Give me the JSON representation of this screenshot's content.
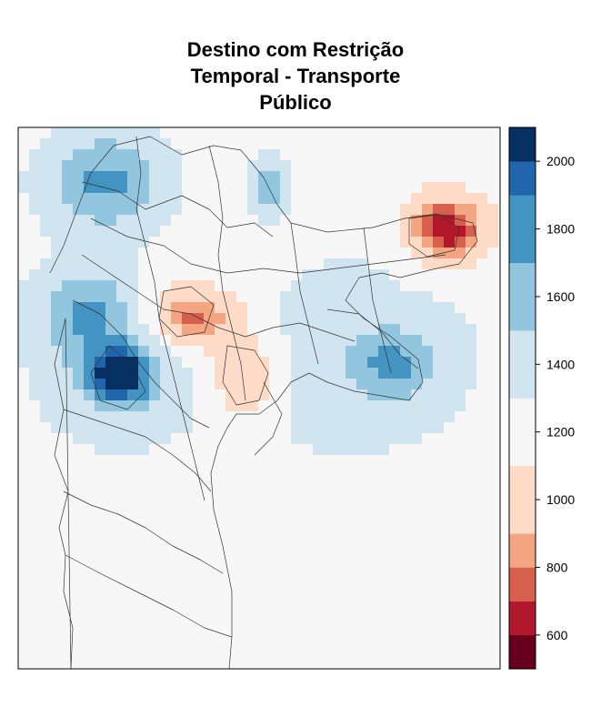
{
  "title_lines": [
    "Destino com Restrição",
    "Temporal - Transporte",
    "Público"
  ],
  "legend": {
    "ticks": [
      600,
      800,
      1000,
      1200,
      1400,
      1600,
      1800,
      2000
    ],
    "breaks": [
      500,
      600,
      700,
      800,
      900,
      1000,
      1100,
      1200,
      1300,
      1400,
      1500,
      1600,
      1700,
      1800,
      1900,
      2000,
      2100
    ],
    "colors": [
      "#67001f",
      "#b2182b",
      "#d6604d",
      "#f4a582",
      "#fddbc7",
      "#fddbc7",
      "#f7f7f7",
      "#f7f7f7",
      "#d1e5f0",
      "#d1e5f0",
      "#92c5de",
      "#92c5de",
      "#4393c3",
      "#4393c3",
      "#2166ac",
      "#053061"
    ]
  },
  "surface": {
    "base_value": 1230,
    "hotspots": [
      {
        "label": "north-west high",
        "value": 1750
      },
      {
        "label": "west high",
        "value": 1650
      },
      {
        "label": "south-west peak",
        "value": 2050
      },
      {
        "label": "south-west ring",
        "value": 1500
      },
      {
        "label": "north high",
        "value": 1650
      },
      {
        "label": "east high",
        "value": 1620
      },
      {
        "label": "east ring",
        "value": 1450
      },
      {
        "label": "centre low",
        "value": 700
      },
      {
        "label": "centre-south low",
        "value": 850
      },
      {
        "label": "far-east low",
        "value": 600
      },
      {
        "label": "south-east background",
        "value": 1150
      }
    ]
  }
}
